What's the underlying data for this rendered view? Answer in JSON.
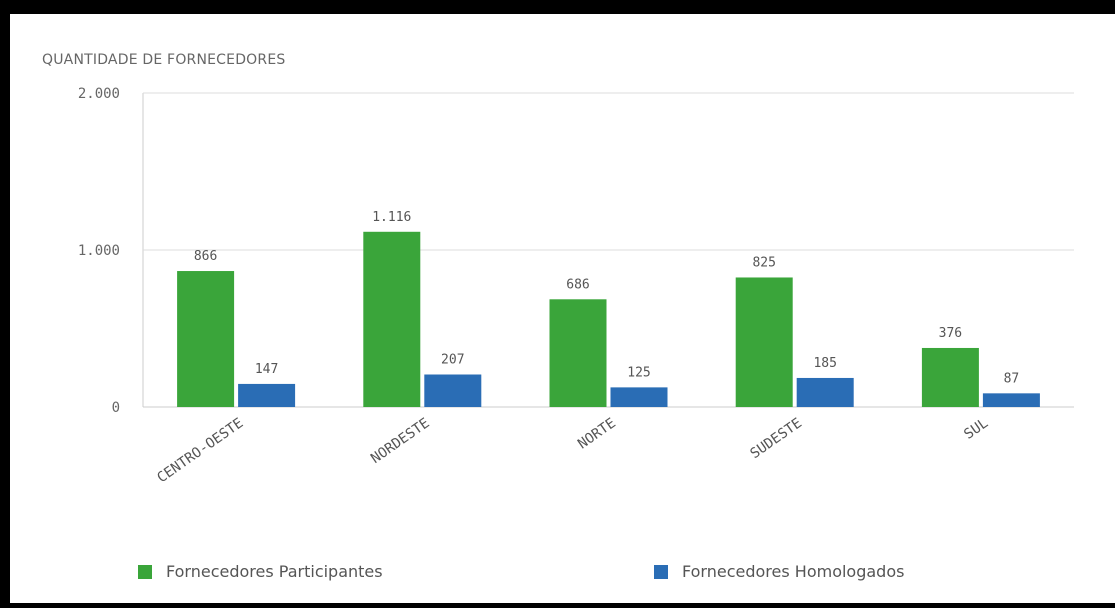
{
  "chart_data": {
    "type": "bar",
    "title": "QUANTIDADE DE FORNECEDORES",
    "categories": [
      "CENTRO-OESTE",
      "NORDESTE",
      "NORTE",
      "SUDESTE",
      "SUL"
    ],
    "series": [
      {
        "name": "Fornecedores Participantes",
        "color": "#3aa53a",
        "values": [
          866,
          1116,
          686,
          825,
          376
        ],
        "labels": [
          "866",
          "1.116",
          "686",
          "825",
          "376"
        ]
      },
      {
        "name": "Fornecedores Homologados",
        "color": "#2a6db5",
        "values": [
          147,
          207,
          125,
          185,
          87
        ],
        "labels": [
          "147",
          "207",
          "125",
          "185",
          "87"
        ]
      }
    ],
    "yticks": [
      0,
      1000,
      2000
    ],
    "ytick_labels": [
      "0",
      "1.000",
      "2.000"
    ],
    "ylim": [
      0,
      2000
    ],
    "grid": true,
    "legend_position": "bottom"
  }
}
